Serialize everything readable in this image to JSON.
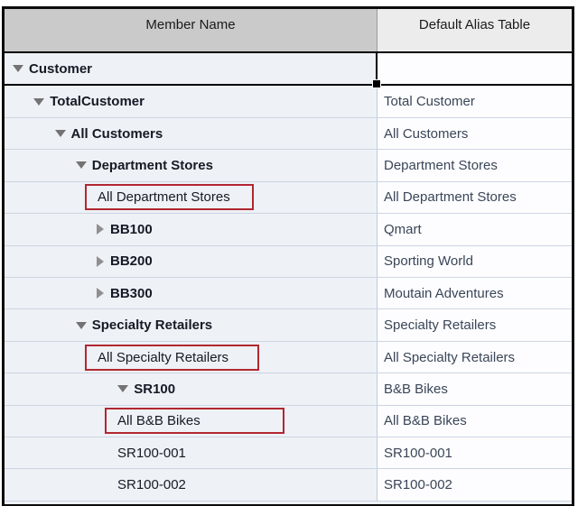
{
  "header": {
    "member_col": "Member Name",
    "alias_col": "Default Alias Table"
  },
  "colors": {
    "selection_border": "#000000",
    "highlight_box_border": "#b12730",
    "member_header_bg": "#cacaca",
    "alias_header_bg": "#ececec",
    "member_cell_bg": "#eef1f6",
    "alias_cell_bg": "#fdfdff"
  },
  "icons": {
    "expanded": "triangle-down-icon",
    "collapsed": "triangle-right-icon"
  },
  "rows": [
    {
      "member": "Customer",
      "alias": "",
      "level": 0,
      "state": "expanded",
      "bold": true,
      "selected": true,
      "highlighted": false
    },
    {
      "member": "TotalCustomer",
      "alias": "Total Customer",
      "level": 1,
      "state": "expanded",
      "bold": true,
      "selected": false,
      "highlighted": false
    },
    {
      "member": "All Customers",
      "alias": "All Customers",
      "level": 2,
      "state": "expanded",
      "bold": true,
      "selected": false,
      "highlighted": false
    },
    {
      "member": "Department Stores",
      "alias": "Department Stores",
      "level": 3,
      "state": "expanded",
      "bold": true,
      "selected": false,
      "highlighted": false
    },
    {
      "member": "All Department Stores",
      "alias": "All Department Stores",
      "level": 4,
      "state": "leaf",
      "bold": false,
      "selected": false,
      "highlighted": true
    },
    {
      "member": "BB100",
      "alias": "Qmart",
      "level": 4,
      "state": "collapsed",
      "bold": true,
      "selected": false,
      "highlighted": false
    },
    {
      "member": "BB200",
      "alias": "Sporting World",
      "level": 4,
      "state": "collapsed",
      "bold": true,
      "selected": false,
      "highlighted": false
    },
    {
      "member": "BB300",
      "alias": "Moutain Adventures",
      "level": 4,
      "state": "collapsed",
      "bold": true,
      "selected": false,
      "highlighted": false
    },
    {
      "member": "Specialty Retailers",
      "alias": "Specialty Retailers",
      "level": 3,
      "state": "expanded",
      "bold": true,
      "selected": false,
      "highlighted": false
    },
    {
      "member": "All Specialty Retailers",
      "alias": "All Specialty Retailers",
      "level": 4,
      "state": "leaf",
      "bold": false,
      "selected": false,
      "highlighted": true
    },
    {
      "member": "SR100",
      "alias": "B&B Bikes",
      "level": 5,
      "state": "expanded",
      "bold": true,
      "selected": false,
      "highlighted": false
    },
    {
      "member": "All B&B Bikes",
      "alias": "All B&B Bikes",
      "level": 5,
      "state": "leaf",
      "bold": false,
      "selected": false,
      "highlighted": true
    },
    {
      "member": "SR100-001",
      "alias": "SR100-001",
      "level": 5,
      "state": "leaf",
      "bold": false,
      "selected": false,
      "highlighted": false
    },
    {
      "member": "SR100-002",
      "alias": "SR100-002",
      "level": 5,
      "state": "leaf",
      "bold": false,
      "selected": false,
      "highlighted": false
    }
  ]
}
